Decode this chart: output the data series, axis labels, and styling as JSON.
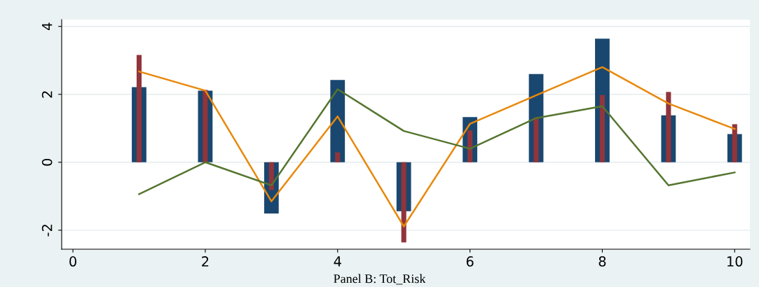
{
  "chart_data": {
    "type": "bar",
    "title": "Panel B: Tot_Risk",
    "x": [
      1,
      2,
      3,
      4,
      5,
      6,
      7,
      8,
      9,
      10
    ],
    "series": [
      {
        "color": "#1a476f",
        "values": [
          2.21,
          2.11,
          -1.51,
          2.42,
          -1.44,
          1.33,
          2.6,
          3.64,
          1.38,
          0.83
        ]
      },
      {
        "color": "#90353b",
        "values": [
          3.16,
          2.13,
          -0.82,
          0.29,
          -2.36,
          0.94,
          1.32,
          1.98,
          2.07,
          1.12
        ]
      },
      {
        "type": "line",
        "color": "#e8890c",
        "values": [
          2.67,
          2.11,
          -1.15,
          1.35,
          -1.89,
          1.13,
          1.97,
          2.8,
          1.73,
          0.98
        ]
      },
      {
        "type": "line",
        "color": "#55752f",
        "values": [
          -0.94,
          0.0,
          -0.68,
          2.15,
          0.92,
          0.4,
          1.3,
          1.65,
          -0.68,
          -0.3
        ]
      }
    ],
    "xlim": [
      -0.17,
      10.23
    ],
    "ylim": [
      -2.56,
      4.2
    ],
    "xticks": [
      0,
      2,
      4,
      6,
      8,
      10
    ],
    "yticks": [
      -2,
      0,
      2,
      4
    ],
    "grid": "y",
    "legend": false,
    "marker": "none",
    "line_style": "solid"
  }
}
